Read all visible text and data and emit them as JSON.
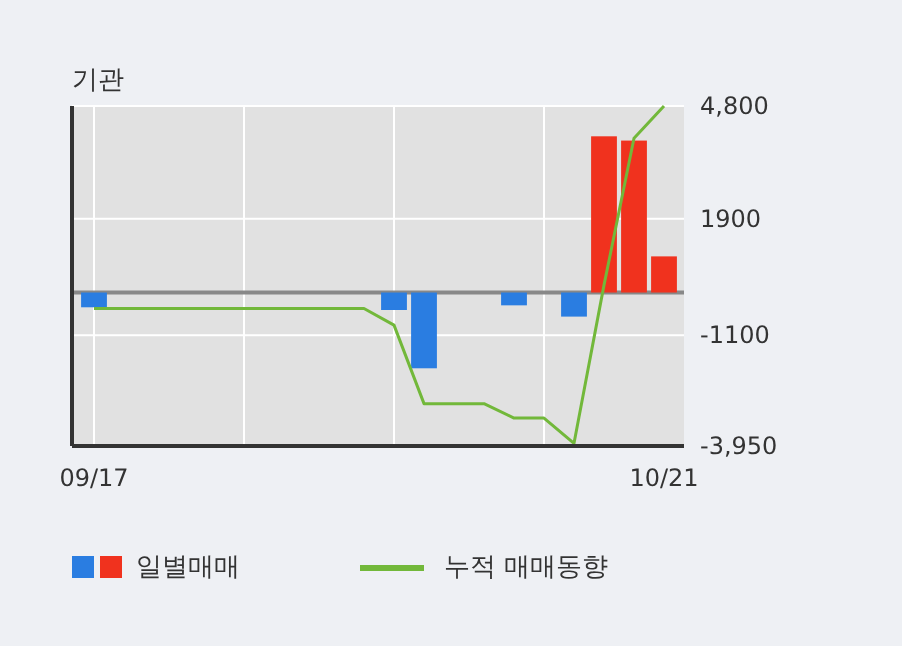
{
  "chart_data": {
    "type": "bar",
    "title": "기관",
    "categories": [
      "09/17",
      null,
      null,
      null,
      null,
      null,
      null,
      null,
      null,
      null,
      null,
      null,
      null,
      null,
      null,
      null,
      null,
      null,
      null,
      "10/21"
    ],
    "series": [
      {
        "name": "일별매매",
        "colors": [
          "#2a7de1",
          "#2a7de1",
          "#2a7de1",
          "#2a7de1",
          "#2a7de1",
          "#2a7de1",
          "#2a7de1",
          "#2a7de1",
          "#2a7de1",
          "#2a7de1",
          "#2a7de1",
          "#2a7de1",
          "#2a7de1",
          "#2a7de1",
          "#2a7de1",
          "#2a7de1",
          "#2a7de1",
          "#f0321e",
          "#f0321e",
          "#f0321e"
        ],
        "values": [
          -380,
          0,
          0,
          0,
          0,
          0,
          0,
          0,
          0,
          0,
          -450,
          -1950,
          0,
          0,
          -330,
          0,
          -620,
          4020,
          3910,
          930
        ]
      },
      {
        "name": "누적 매매동향",
        "type": "line",
        "color": "#72b83a",
        "values": [
          -410,
          -410,
          -410,
          -410,
          -410,
          -410,
          -410,
          -410,
          -410,
          -410,
          -840,
          -2860,
          -2860,
          -2860,
          -3230,
          -3230,
          -3880,
          190,
          3970,
          4800
        ]
      }
    ],
    "ylim": [
      -3950,
      4800
    ],
    "yticks": [
      {
        "value": 4800,
        "label": "4,800"
      },
      1900,
      -1100,
      {
        "value": -3950,
        "label": "-3,950"
      }
    ],
    "ref_lines": [
      {
        "axis": "y",
        "value": 0,
        "color": "#888888"
      }
    ],
    "grid": true,
    "legend": "bottom"
  }
}
